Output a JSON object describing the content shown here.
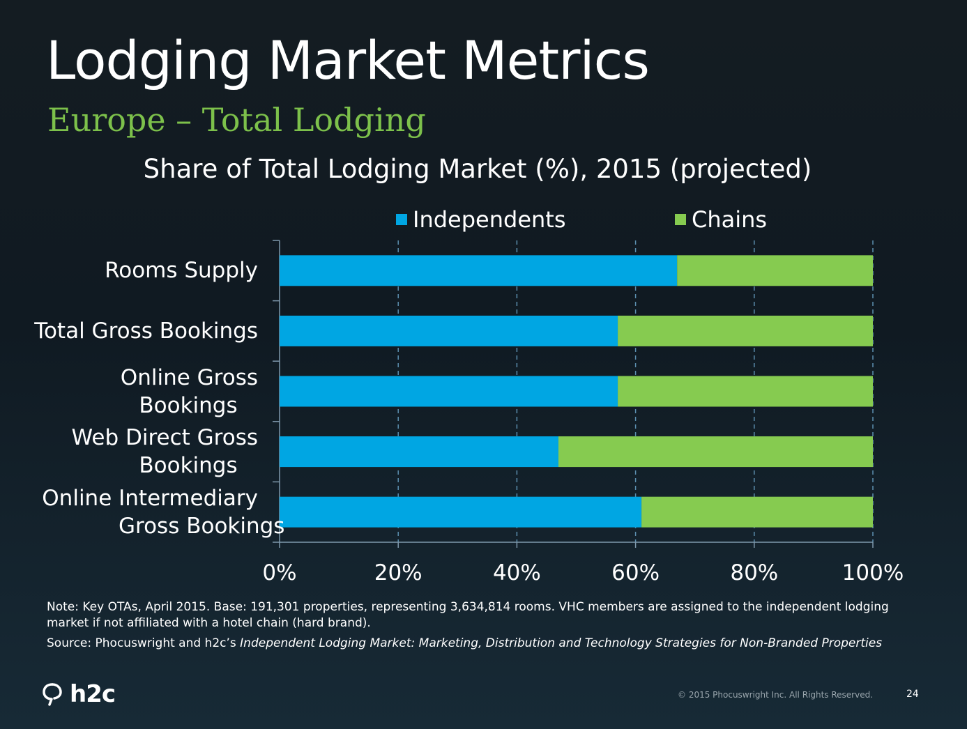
{
  "slide": {
    "title": "Lodging Market Metrics",
    "subtitle": "Europe – Total Lodging",
    "note": "Note: Key OTAs, April 2015. Base: 191,301 properties, representing 3,634,814 rooms. VHC members are assigned to the independent lodging market if not affiliated with a hotel chain (hard brand).",
    "source_prefix": "Source: Phocuswright and h2c’s ",
    "source_title": "Independent Lodging Market: Marketing, Distribution and Technology Strategies for Non-Branded Properties",
    "logo_text": "h2c",
    "logo_icon": "speech-bubble-icon",
    "copyright": "© 2015 Phocuswright Inc. All Rights Reserved.",
    "page_number": "24"
  },
  "chart_data": {
    "type": "bar",
    "orientation": "horizontal",
    "stacked": true,
    "title": "Share of Total Lodging Market (%), 2015 (projected)",
    "categories": [
      [
        "Rooms Supply"
      ],
      [
        "Total Gross Bookings"
      ],
      [
        "Online Gross",
        "Bookings"
      ],
      [
        "Web Direct Gross",
        "Bookings"
      ],
      [
        "Online Intermediary",
        "Gross Bookings"
      ]
    ],
    "series": [
      {
        "name": "Independents",
        "color": "#00a6e3",
        "values": [
          67,
          57,
          57,
          47,
          61
        ]
      },
      {
        "name": "Chains",
        "color": "#86cb50",
        "values": [
          33,
          43,
          43,
          53,
          39
        ]
      }
    ],
    "xlim": [
      0,
      100
    ],
    "xticks": [
      "0%",
      "20%",
      "40%",
      "60%",
      "80%",
      "100%"
    ],
    "grid": "vertical dashed",
    "legend": "top"
  }
}
